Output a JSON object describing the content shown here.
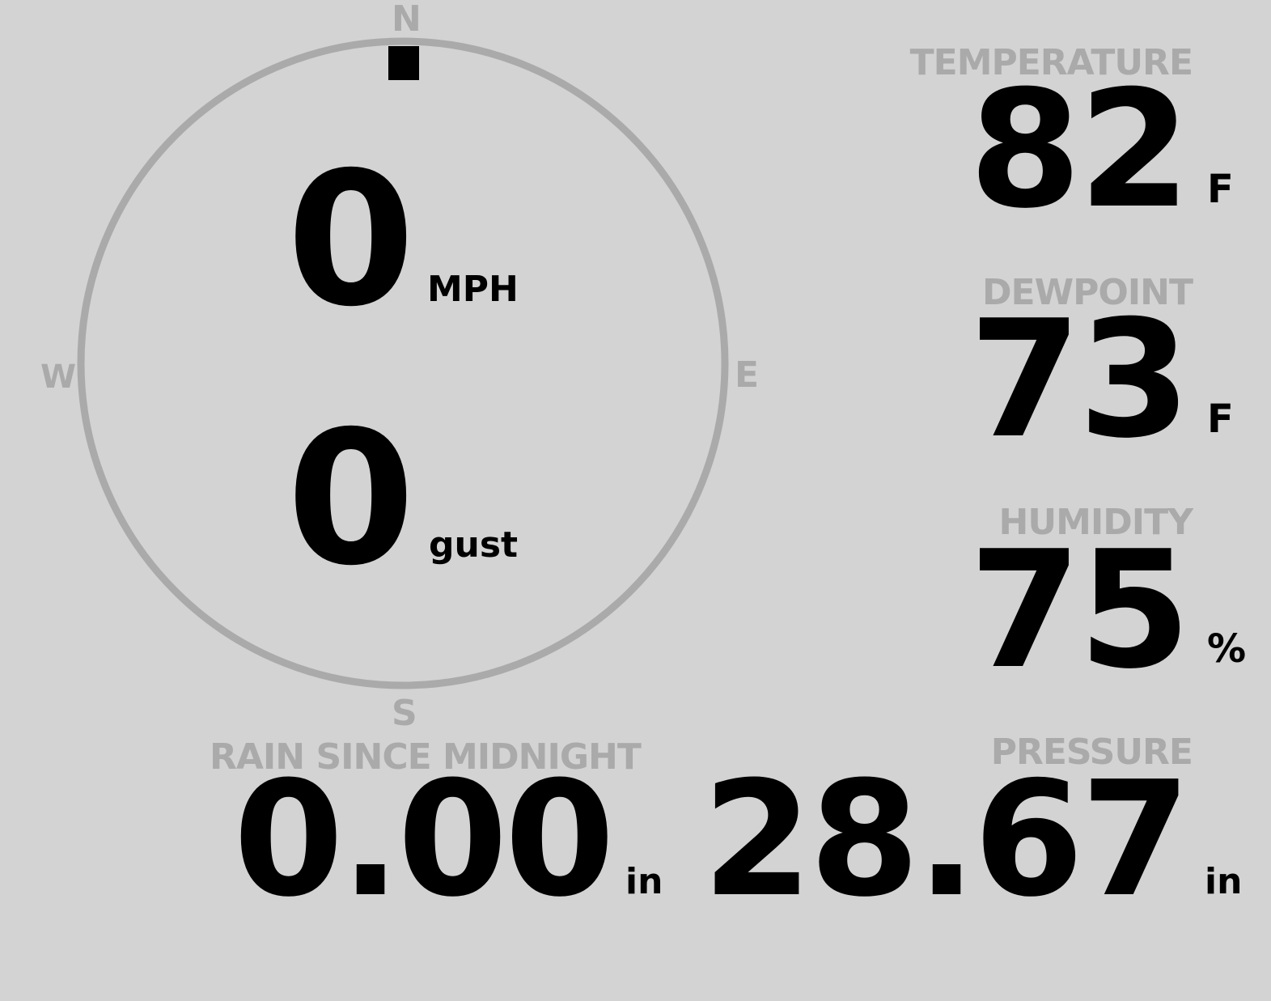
{
  "compass": {
    "north": "N",
    "south": "S",
    "east": "E",
    "west": "W",
    "wind_direction_deg": 0,
    "ring_color": "#aaaaaa",
    "marker_color": "#000000"
  },
  "wind": {
    "speed": "0",
    "speed_unit": "MPH",
    "gust": "0",
    "gust_unit": "gust"
  },
  "temperature": {
    "label": "TEMPERATURE",
    "value": "82",
    "unit": "F"
  },
  "dewpoint": {
    "label": "DEWPOINT",
    "value": "73",
    "unit": "F"
  },
  "humidity": {
    "label": "HUMIDITY",
    "value": "75",
    "unit": "%"
  },
  "rain": {
    "label": "RAIN SINCE MIDNIGHT",
    "value": "0.00",
    "unit": "in"
  },
  "pressure": {
    "label": "PRESSURE",
    "value": "28.67",
    "unit": "in"
  },
  "colors": {
    "background": "#d3d3d3",
    "label": "#aaaaaa",
    "value": "#000000"
  }
}
